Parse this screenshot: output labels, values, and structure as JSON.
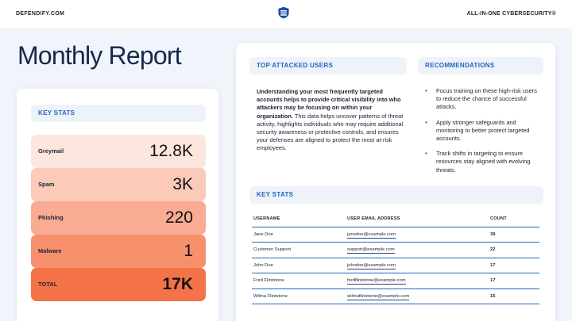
{
  "header": {
    "brand": "DEFENDIFY.COM",
    "tagline": "ALL-IN-ONE CYBERSECURITY®",
    "logo_icon": "defendify-shield-icon"
  },
  "page_title": "Monthly Report",
  "left_panel": {
    "tab_label": "KEY STATS",
    "stats": [
      {
        "label": "Greymail",
        "value": "12.8K",
        "color": "#fde6de"
      },
      {
        "label": "Spam",
        "value": "3K",
        "color": "#fbcab9"
      },
      {
        "label": "Phishing",
        "value": "220",
        "color": "#f9ac93"
      },
      {
        "label": "Malware",
        "value": "1",
        "color": "#f7906c"
      },
      {
        "label": "TOTAL",
        "value": "17K",
        "color": "#f57348"
      }
    ]
  },
  "top_attacked": {
    "tab_label": "TOP ATTACKED USERS",
    "intro_bold": "Understanding your most frequently targeted accounts helps to provide critical visibility into who attackers may be focusing on within your organization.",
    "intro_rest": " This data helps uncover patterns of threat activity, highlights individuals who may require additional security awareness or protective controls, and ensures your defenses are aligned to protect the most at-risk employees."
  },
  "recommendations": {
    "tab_label": "RECOMMENDATIONS",
    "bullet": "•",
    "items": [
      "Focus training on these high-risk users to reduce the chance of successful attacks.",
      "Apply stronger safeguards and monitoring to better protect targeted accounts.",
      "Track shifts in targeting to ensure resources stay aligned with evolving threats."
    ]
  },
  "key_stats_table": {
    "tab_label": "KEY STATS",
    "columns": [
      "USERNAME",
      "USER EMAIL ADDRESS",
      "COUNT"
    ],
    "rows": [
      {
        "username": "Jane Doe",
        "email": "janedoe@example.com",
        "count": "39"
      },
      {
        "username": "Customer Support",
        "email": "support@example.com",
        "count": "22"
      },
      {
        "username": "John Doe",
        "email": "johndoe@example.com",
        "count": "17"
      },
      {
        "username": "Fred Flintstone",
        "email": "fredflintstone@example.com",
        "count": "17"
      },
      {
        "username": "Wilma Flintstone",
        "email": "wilmaflintstone@example.com",
        "count": "15"
      }
    ]
  },
  "colors": {
    "accent": "#1f66bd",
    "title": "#16294a",
    "background": "#f1f4fa"
  }
}
